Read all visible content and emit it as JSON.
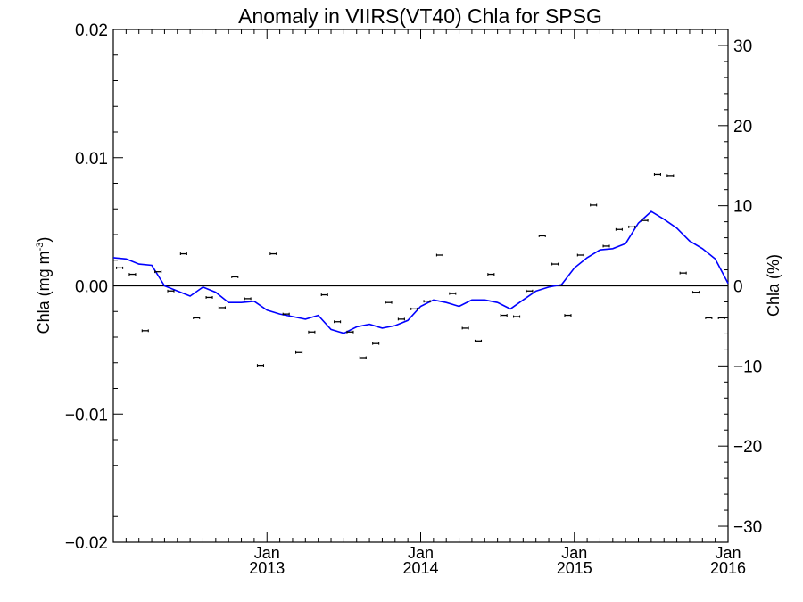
{
  "chart_data": {
    "type": "scatter",
    "title": "Anomaly in VIIRS(VT40) Chla for SPSG",
    "ylabel": "Chla (mg m",
    "ylabel_sup": "-3",
    "ylabel_close": ")",
    "y2label": "Chla (%)",
    "xlim": [
      "2012-01",
      "2016-01"
    ],
    "ylim": [
      -0.02,
      0.02
    ],
    "y2lim": [
      -32,
      32
    ],
    "y_ticks": [
      -0.02,
      -0.01,
      0.0,
      0.01,
      0.02
    ],
    "y_tick_labels": [
      "−0.02",
      "−0.01",
      "0.00",
      "0.01",
      "0.02"
    ],
    "y2_ticks": [
      -30,
      -20,
      -10,
      0,
      10,
      20,
      30
    ],
    "y2_tick_labels": [
      "−30",
      "−20",
      "−10",
      "0",
      "10",
      "20",
      "30"
    ],
    "x_ticks": [
      {
        "date": "2013-01",
        "month": "Jan",
        "year": "2013"
      },
      {
        "date": "2014-01",
        "month": "Jan",
        "year": "2014"
      },
      {
        "date": "2015-01",
        "month": "Jan",
        "year": "2015"
      },
      {
        "date": "2016-01",
        "month": "Jan",
        "year": "2016"
      }
    ],
    "zero_line": 0,
    "grid": false,
    "colors": {
      "points": "#000000",
      "line": "#0000ff",
      "axes": "#000000"
    },
    "series": [
      {
        "kind": "points_with_error_bars",
        "x": [
          "2012-01-16",
          "2012-02-16",
          "2012-03-16",
          "2012-04-16",
          "2012-05-16",
          "2012-06-16",
          "2012-07-16",
          "2012-08-16",
          "2012-09-16",
          "2012-10-16",
          "2012-11-16",
          "2012-12-16",
          "2013-01-16",
          "2013-02-16",
          "2013-03-16",
          "2013-04-16",
          "2013-05-16",
          "2013-06-16",
          "2013-07-16",
          "2013-08-16",
          "2013-09-16",
          "2013-10-16",
          "2013-11-16",
          "2013-12-16",
          "2014-01-16",
          "2014-02-16",
          "2014-03-16",
          "2014-04-16",
          "2014-05-16",
          "2014-06-16",
          "2014-07-16",
          "2014-08-16",
          "2014-09-16",
          "2014-10-16",
          "2014-11-16",
          "2014-12-16",
          "2015-01-16",
          "2015-02-16",
          "2015-03-16",
          "2015-04-16",
          "2015-05-16",
          "2015-06-16",
          "2015-07-16",
          "2015-08-16",
          "2015-09-16",
          "2015-10-16",
          "2015-11-16",
          "2015-12-16"
        ],
        "y": [
          0.0014,
          0.0009,
          -0.0035,
          0.0011,
          -0.0004,
          0.0025,
          -0.0025,
          -0.0009,
          -0.0017,
          0.0007,
          -0.001,
          -0.0062,
          0.0025,
          -0.0022,
          -0.0052,
          -0.0036,
          -0.0007,
          -0.0028,
          -0.0036,
          -0.0056,
          -0.0045,
          -0.0013,
          -0.0026,
          -0.0018,
          -0.0012,
          0.0024,
          -0.0006,
          -0.0033,
          -0.0043,
          0.0009,
          -0.0023,
          -0.0024,
          -0.0004,
          0.0039,
          0.0017,
          -0.0023,
          0.0024,
          0.0063,
          0.0031,
          0.0044,
          0.0046,
          0.0051,
          0.0087,
          0.0086,
          0.001,
          -0.0005,
          -0.0025,
          -0.0025
        ],
        "error": 0.0001
      },
      {
        "kind": "line",
        "x": [
          "2012-01-01",
          "2012-02-01",
          "2012-03-01",
          "2012-04-01",
          "2012-05-01",
          "2012-06-01",
          "2012-07-01",
          "2012-08-01",
          "2012-09-01",
          "2012-10-01",
          "2012-11-01",
          "2012-12-01",
          "2013-01-01",
          "2013-02-01",
          "2013-03-01",
          "2013-04-01",
          "2013-05-01",
          "2013-06-01",
          "2013-07-01",
          "2013-08-01",
          "2013-09-01",
          "2013-10-01",
          "2013-11-01",
          "2013-12-01",
          "2014-01-01",
          "2014-02-01",
          "2014-03-01",
          "2014-04-01",
          "2014-05-01",
          "2014-06-01",
          "2014-07-01",
          "2014-08-01",
          "2014-09-01",
          "2014-10-01",
          "2014-11-01",
          "2014-12-01",
          "2015-01-01",
          "2015-02-01",
          "2015-03-01",
          "2015-04-01",
          "2015-05-01",
          "2015-06-01",
          "2015-07-01",
          "2015-08-01",
          "2015-09-01",
          "2015-10-01",
          "2015-11-01",
          "2015-12-01",
          "2016-01-01"
        ],
        "y": [
          0.0022,
          0.0021,
          0.0017,
          0.0016,
          0.0,
          -0.0004,
          -0.0008,
          -0.0001,
          -0.0005,
          -0.0013,
          -0.0013,
          -0.0012,
          -0.0019,
          -0.0022,
          -0.0024,
          -0.0026,
          -0.0023,
          -0.0034,
          -0.0037,
          -0.0032,
          -0.003,
          -0.0033,
          -0.0031,
          -0.0027,
          -0.0016,
          -0.0011,
          -0.0013,
          -0.0016,
          -0.0011,
          -0.0011,
          -0.0013,
          -0.0018,
          -0.0011,
          -0.0004,
          -0.0001,
          0.0001,
          0.0014,
          0.0022,
          0.0028,
          0.0029,
          0.0033,
          0.0049,
          0.0058,
          0.0052,
          0.0045,
          0.0035,
          0.0029,
          0.0021,
          0.0002
        ]
      }
    ]
  }
}
